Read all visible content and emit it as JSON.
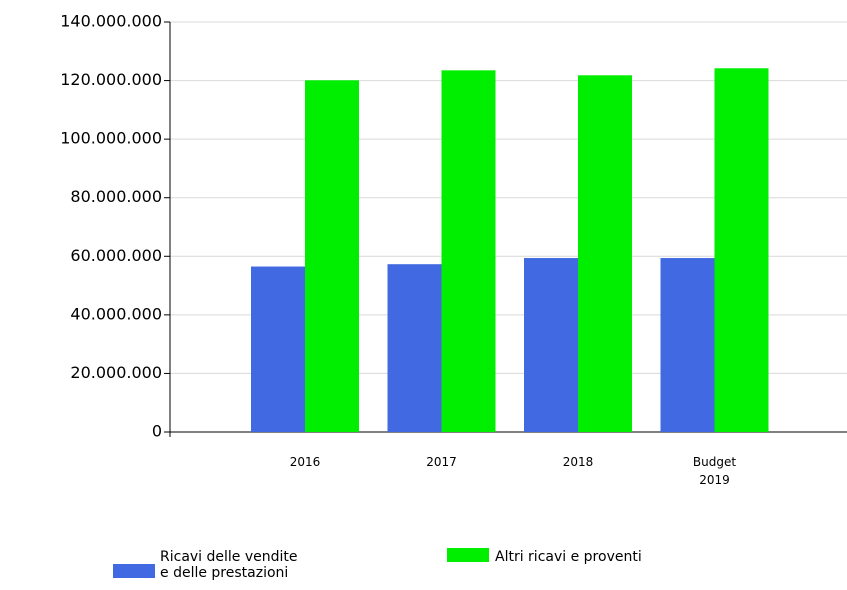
{
  "chart_data": {
    "type": "bar",
    "categories": [
      "2016",
      "2017",
      "2018",
      "Budget 2019"
    ],
    "series": [
      {
        "name": "Ricavi delle vendite e delle prestazioni",
        "color": "#4169e1",
        "values": [
          56500000,
          57300000,
          59400000,
          59400000
        ]
      },
      {
        "name": "Altri ricavi e proventi",
        "color": "#00ee00",
        "values": [
          120100000,
          123500000,
          121800000,
          124200000
        ]
      }
    ],
    "ylim": [
      0,
      140000000
    ],
    "yticks": [
      0,
      {
        "value": 20000000,
        "label": "20.000.000"
      },
      {
        "value": 40000000,
        "label": "40.000.000"
      },
      {
        "value": 60000000,
        "label": "60.000.000"
      },
      {
        "value": 80000000,
        "label": "80.000.000"
      },
      {
        "value": 100000000,
        "label": "100.000.000"
      },
      {
        "value": 120000000,
        "label": "120.000.000"
      },
      {
        "value": 140000000,
        "label": "140.000.000"
      }
    ],
    "grid": true
  }
}
